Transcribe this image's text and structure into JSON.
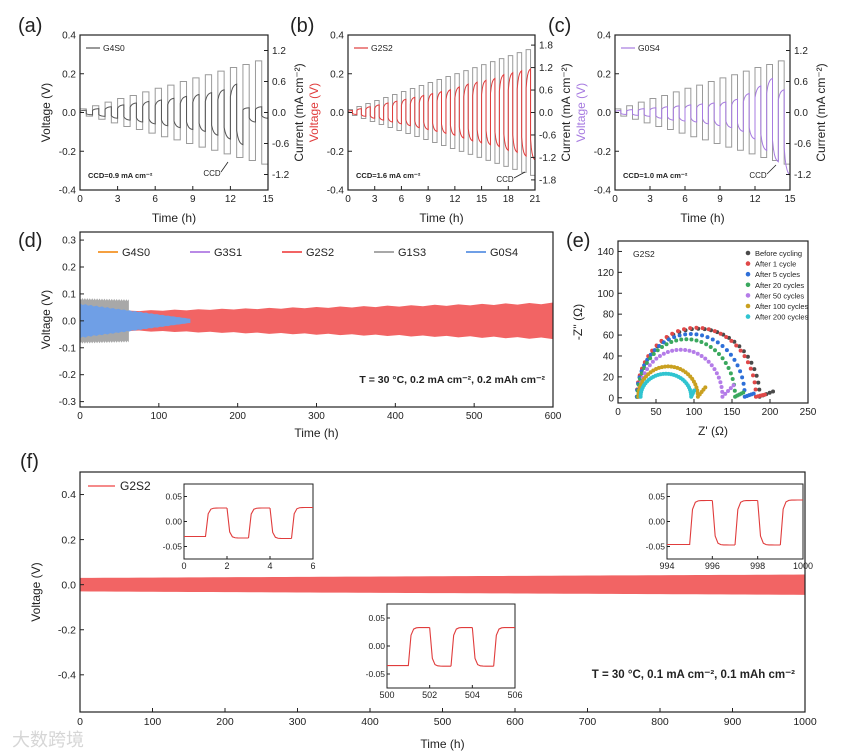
{
  "watermark": "大数跨境",
  "chart_data": [
    {
      "panel_label": "(a)",
      "type": "line",
      "legend": "G4S0",
      "color": "#555555",
      "xlabel": "Time (h)",
      "ylabel": "Voltage (V)",
      "y2label": "Current (mA cm⁻²)",
      "xlim": [
        0,
        15
      ],
      "ylim": [
        -0.4,
        0.4
      ],
      "y2lim": [
        -1.5,
        1.5
      ],
      "xticks": [
        "0",
        "3",
        "6",
        "9",
        "12",
        "15"
      ],
      "yticks": [
        "-0.4",
        "-0.2",
        "0.0",
        "0.2",
        "0.4"
      ],
      "y2ticks": [
        "-1.2",
        "-0.6",
        "0.0",
        "0.6",
        "1.2"
      ],
      "annotation": "CCD=0.9 mA cm⁻²",
      "arrow_label": "CCD",
      "step_hours": 1,
      "currents": [
        0.07,
        0.13,
        0.2,
        0.27,
        0.33,
        0.4,
        0.47,
        0.53,
        0.6,
        0.67,
        0.73,
        0.8,
        0.87,
        0.93,
        1.0
      ],
      "v_pos": [
        0.012,
        0.02,
        0.03,
        0.04,
        0.05,
        0.058,
        0.066,
        0.075,
        0.085,
        0.095,
        0.105,
        0.12,
        0.15,
        0.025,
        0.03
      ],
      "v_neg": [
        -0.012,
        -0.02,
        -0.03,
        -0.04,
        -0.05,
        -0.06,
        -0.07,
        -0.08,
        -0.09,
        -0.1,
        -0.12,
        -0.14,
        -0.17,
        -0.05,
        -0.03
      ]
    },
    {
      "panel_label": "(b)",
      "type": "line",
      "legend": "G2S2",
      "color": "#e03c3c",
      "xlabel": "Time (h)",
      "ylabel": "Voltage (V)",
      "y2label": "Current (mA cm⁻²)",
      "xlim": [
        0,
        21
      ],
      "ylim": [
        -0.4,
        0.4
      ],
      "y2lim": [
        -2.07,
        2.07
      ],
      "xticks": [
        "0",
        "3",
        "6",
        "9",
        "12",
        "15",
        "18",
        "21"
      ],
      "yticks": [
        "-0.4",
        "-0.2",
        "0.0",
        "0.2",
        "0.4"
      ],
      "y2ticks": [
        "-1.8",
        "-1.2",
        "-0.6",
        "0.0",
        "0.6",
        "1.2",
        "1.8"
      ],
      "annotation": "CCD=1.6 mA cm⁻²",
      "arrow_label": "CCD",
      "step_hours": 1,
      "currents": [
        0.08,
        0.16,
        0.24,
        0.32,
        0.4,
        0.48,
        0.56,
        0.64,
        0.72,
        0.8,
        0.88,
        0.96,
        1.04,
        1.12,
        1.2,
        1.28,
        1.36,
        1.44,
        1.52,
        1.6,
        1.68
      ],
      "v_pos": [
        0.01,
        0.02,
        0.03,
        0.04,
        0.05,
        0.06,
        0.07,
        0.08,
        0.09,
        0.1,
        0.11,
        0.12,
        0.135,
        0.15,
        0.16,
        0.17,
        0.18,
        0.2,
        0.21,
        0.22,
        0.23
      ],
      "v_neg": [
        -0.01,
        -0.02,
        -0.03,
        -0.04,
        -0.05,
        -0.06,
        -0.07,
        -0.08,
        -0.09,
        -0.1,
        -0.11,
        -0.12,
        -0.135,
        -0.15,
        -0.16,
        -0.17,
        -0.18,
        -0.2,
        -0.21,
        -0.23,
        -0.25
      ]
    },
    {
      "panel_label": "(c)",
      "type": "line",
      "legend": "G0S4",
      "color": "#a77be0",
      "xlabel": "Time (h)",
      "ylabel": "Voltage (V)",
      "y2label": "Current (mA cm⁻²)",
      "xlim": [
        0,
        15
      ],
      "ylim": [
        -0.4,
        0.4
      ],
      "y2lim": [
        -1.5,
        1.5
      ],
      "xticks": [
        "0",
        "3",
        "6",
        "9",
        "12",
        "15"
      ],
      "yticks": [
        "-0.4",
        "-0.2",
        "0.0",
        "0.2",
        "0.4"
      ],
      "y2ticks": [
        "-1.2",
        "-0.6",
        "0.0",
        "0.6",
        "1.2"
      ],
      "annotation": "CCD=1.0 mA cm⁻²",
      "arrow_label": "CCD",
      "step_hours": 1,
      "currents": [
        0.07,
        0.13,
        0.2,
        0.27,
        0.33,
        0.4,
        0.47,
        0.53,
        0.6,
        0.67,
        0.73,
        0.8,
        0.87,
        0.93,
        1.0
      ],
      "v_pos": [
        0.01,
        0.015,
        0.02,
        0.025,
        0.03,
        0.035,
        0.04,
        0.045,
        0.05,
        0.055,
        0.07,
        0.1,
        0.14,
        0.18,
        0.12
      ],
      "v_neg": [
        -0.01,
        -0.015,
        -0.02,
        -0.03,
        -0.04,
        -0.045,
        -0.05,
        -0.06,
        -0.07,
        -0.08,
        -0.1,
        -0.14,
        -0.2,
        -0.26,
        -0.33
      ]
    },
    {
      "panel_label": "(d)",
      "type": "area",
      "xlabel": "Time (h)",
      "ylabel": "Voltage (V)",
      "xlim": [
        0,
        600
      ],
      "ylim": [
        -0.32,
        0.33
      ],
      "xticks": [
        "0",
        "100",
        "200",
        "300",
        "400",
        "500",
        "600"
      ],
      "yticks": [
        "-0.3",
        "-0.2",
        "-0.1",
        "0.0",
        "0.1",
        "0.2",
        "0.3"
      ],
      "annotation": "T = 30 °C,   0.2 mA cm⁻²,   0.2 mAh cm⁻²",
      "series": [
        {
          "name": "G4S0",
          "color": "#f5a040",
          "end_h": 135,
          "amp_start": 0.015,
          "amp_end": 0.012
        },
        {
          "name": "G3S1",
          "color": "#b98ae6",
          "end_h": 125,
          "amp_start": 0.02,
          "amp_end": 0.01
        },
        {
          "name": "G2S2",
          "color": "#f26464",
          "end_h": 600,
          "amp_start": 0.035,
          "amp_end": 0.068
        },
        {
          "name": "G1S3",
          "color": "#a8a8a8",
          "end_h": 62,
          "amp_start": 0.085,
          "amp_end": 0.08
        },
        {
          "name": "G0S4",
          "color": "#6f9fe6",
          "end_h": 140,
          "amp_start": 0.065,
          "amp_end": 0.008
        }
      ]
    },
    {
      "panel_label": "(e)",
      "type": "scatter",
      "sample": "G2S2",
      "xlabel": "Z' (Ω)",
      "ylabel": "-Z'' (Ω)",
      "xlim": [
        0,
        250
      ],
      "ylim": [
        -5,
        150
      ],
      "xticks": [
        "0",
        "50",
        "100",
        "150",
        "200",
        "250"
      ],
      "yticks": [
        "0",
        "20",
        "40",
        "60",
        "80",
        "100",
        "120",
        "140"
      ],
      "series": [
        {
          "name": "Before cycling",
          "color": "#4a4a4a",
          "r0": 20,
          "r1": 185,
          "peak": 65,
          "tail": [
            203,
            6
          ]
        },
        {
          "name": "After 1 cycle",
          "color": "#e04848",
          "r0": 20,
          "r1": 180,
          "peak": 66,
          "tail": [
            192,
            3
          ]
        },
        {
          "name": "After 5 cycles",
          "color": "#2e6fd8",
          "r0": 20,
          "r1": 165,
          "peak": 60,
          "tail": [
            177,
            4
          ]
        },
        {
          "name": "After 20 cycles",
          "color": "#3aa85e",
          "r0": 21,
          "r1": 152,
          "peak": 55,
          "tail": [
            163,
            5
          ]
        },
        {
          "name": "After 50 cycles",
          "color": "#b47ce8",
          "r0": 23,
          "r1": 135,
          "peak": 45,
          "tail": [
            150,
            12
          ]
        },
        {
          "name": "After 100 cycles",
          "color": "#c9a020",
          "r0": 22,
          "r1": 102,
          "peak": 29,
          "tail": [
            112,
            10
          ]
        },
        {
          "name": "After 200 cycles",
          "color": "#30c4d0",
          "r0": 25,
          "r1": 93,
          "peak": 22,
          "tail": [
            97,
            7
          ]
        }
      ]
    },
    {
      "panel_label": "(f)",
      "type": "area",
      "legend": "G2S2",
      "color": "#f26464",
      "xlabel": "Time (h)",
      "ylabel": "Voltage (V)",
      "xlim": [
        0,
        1000
      ],
      "ylim": [
        -0.565,
        0.5
      ],
      "xticks": [
        "0",
        "100",
        "200",
        "300",
        "400",
        "500",
        "600",
        "700",
        "800",
        "900",
        "1000"
      ],
      "yticks": [
        "-0.4",
        "-0.2",
        "0.0",
        "0.2",
        "0.4"
      ],
      "amp_start": 0.03,
      "amp_end": 0.045,
      "annotation": "T = 30 °C,   0.1 mA cm⁻²,   0.1 mAh cm⁻²",
      "insets": [
        {
          "xlim": [
            0,
            6
          ],
          "ylim": [
            -0.075,
            0.075
          ],
          "xticks": [
            "0",
            "2",
            "4",
            "6"
          ],
          "yticks": [
            "-0.05",
            "0.00",
            "0.05"
          ],
          "levels": [
            -0.03,
            0.027,
            -0.033,
            0.027,
            -0.034,
            0.028
          ]
        },
        {
          "xlim": [
            994,
            1000
          ],
          "ylim": [
            -0.075,
            0.075
          ],
          "xticks": [
            "994",
            "996",
            "998",
            "1000"
          ],
          "yticks": [
            "-0.05",
            "0.00",
            "0.05"
          ],
          "levels": [
            -0.046,
            0.042,
            -0.047,
            0.042,
            -0.047,
            0.043
          ]
        },
        {
          "xlim": [
            500,
            506
          ],
          "ylim": [
            -0.075,
            0.075
          ],
          "xticks": [
            "500",
            "502",
            "504",
            "506"
          ],
          "yticks": [
            "-0.05",
            "0.00",
            "0.05"
          ],
          "levels": [
            -0.035,
            0.033,
            -0.036,
            0.033,
            -0.036,
            0.033
          ]
        }
      ]
    }
  ]
}
